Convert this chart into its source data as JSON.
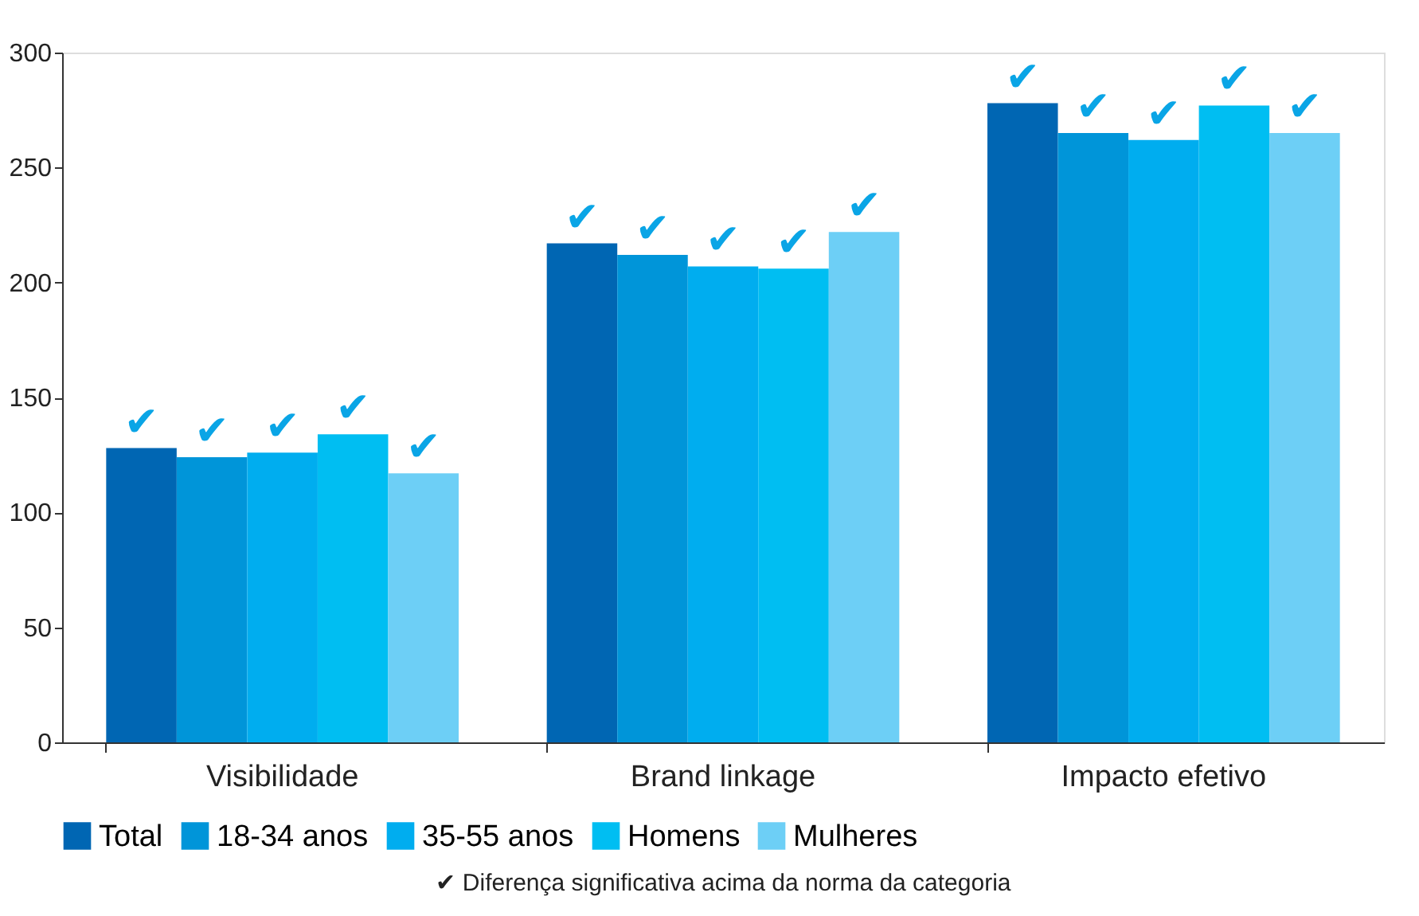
{
  "chart_data": {
    "type": "bar",
    "categories": [
      "Visibilidade",
      "Brand linkage",
      "Impacto efetivo"
    ],
    "series": [
      {
        "name": "Total",
        "color": "#0066b3",
        "values": [
          128,
          217,
          278
        ],
        "value_labels": [
          "✔",
          "✔",
          "✔"
        ]
      },
      {
        "name": "18-34 anos",
        "color": "#0095d9",
        "values": [
          124,
          212,
          265
        ],
        "value_labels": [
          "✔",
          "✔",
          "✔"
        ]
      },
      {
        "name": "35-55 anos",
        "color": "#00adef",
        "values": [
          126,
          207,
          262
        ],
        "value_labels": [
          "✔",
          "✔",
          "✔"
        ]
      },
      {
        "name": "Homens",
        "color": "#00bef2",
        "values": [
          134,
          206,
          277
        ],
        "value_labels": [
          "✔",
          "✔",
          "✔"
        ]
      },
      {
        "name": "Mulheres",
        "color": "#6dcff6",
        "values": [
          117,
          222,
          265
        ],
        "value_labels": [
          "✔",
          "✔",
          "✔"
        ]
      }
    ],
    "ylim": [
      0,
      300
    ],
    "yticks": [
      0,
      50,
      100,
      150,
      200,
      250,
      300
    ],
    "grid": false,
    "legend": "bottom",
    "annotations": [
      "✔ Diferença significativa acima da norma da categoria"
    ]
  }
}
